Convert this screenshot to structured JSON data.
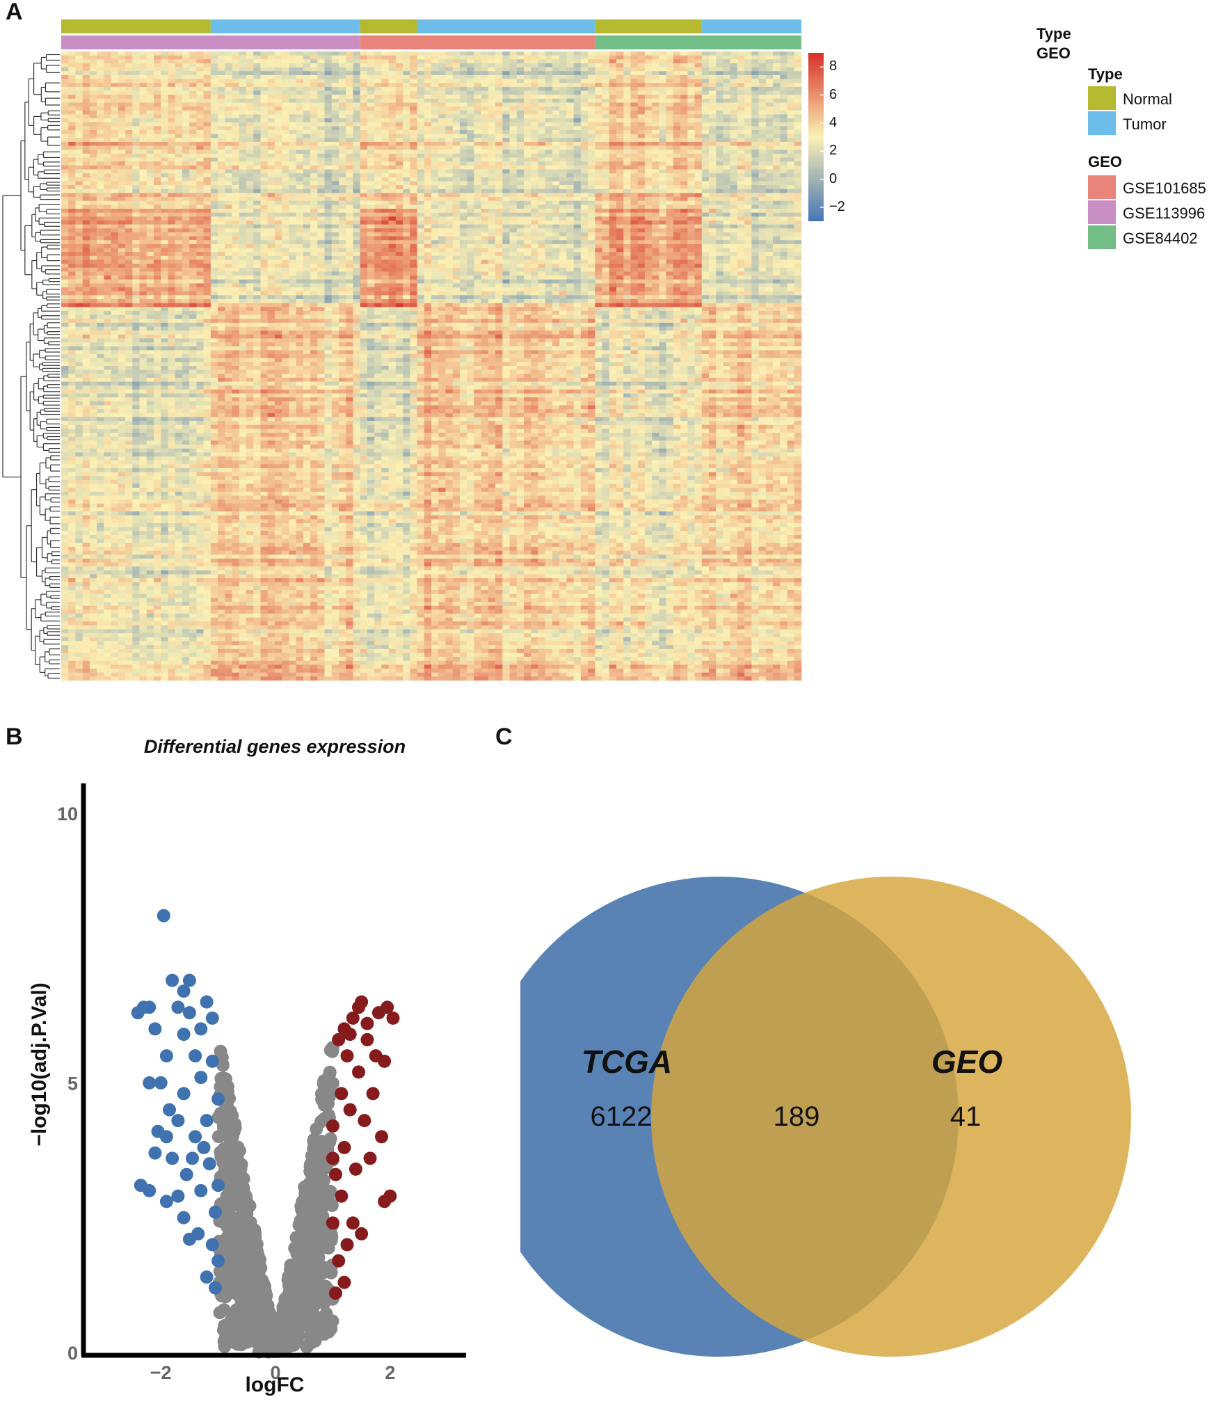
{
  "panels": {
    "a": "A",
    "b": "B",
    "c": "C"
  },
  "heatmap": {
    "annotation_row_labels": [
      "Type",
      "GEO"
    ],
    "type_track": [
      {
        "label": "Normal",
        "n": 21
      },
      {
        "label": "Tumor",
        "n": 21
      },
      {
        "label": "Normal",
        "n": 8
      },
      {
        "label": "Tumor",
        "n": 25
      },
      {
        "label": "Normal",
        "n": 15
      },
      {
        "label": "Tumor",
        "n": 14
      }
    ],
    "geo_track": [
      {
        "label": "GSE113996",
        "n": 42
      },
      {
        "label": "GSE101685",
        "n": 33
      },
      {
        "label": "GSE84402",
        "n": 29
      }
    ],
    "n_rows": 160,
    "color_scale": {
      "ticks": [
        "8",
        "6",
        "4",
        "2",
        "0",
        "−2"
      ],
      "tick_values": [
        8,
        6,
        4,
        2,
        0,
        -2
      ],
      "range": [
        -3,
        9
      ],
      "low": "#4575b4",
      "mid": "#fcf1b5",
      "high": "#d73027"
    },
    "legend": {
      "type_title": "Type",
      "type_items": [
        {
          "label": "Normal",
          "color": "#b4b92f"
        },
        {
          "label": "Tumor",
          "color": "#6cbdea"
        }
      ],
      "geo_title": "GEO",
      "geo_items": [
        {
          "label": "GSE101685",
          "color": "#e8847a"
        },
        {
          "label": "GSE113996",
          "color": "#c98fc5"
        },
        {
          "label": "GSE84402",
          "color": "#73bd86"
        }
      ]
    }
  },
  "chart_data": {
    "type": "scatter",
    "title": "Differential genes expression",
    "xlabel": "logFC",
    "ylabel": "−log10(adj.P.Val)",
    "xlim": [
      -3.3,
      3.3
    ],
    "ylim": [
      0,
      10.5
    ],
    "xticks": [
      -2,
      0,
      2
    ],
    "xtick_labels": [
      "−2",
      "0",
      "2"
    ],
    "yticks": [
      0,
      5,
      10
    ],
    "ytick_labels": [
      "0",
      "5",
      "10"
    ],
    "colors": {
      "down": "#3f72ae",
      "up": "#861b1d",
      "ns": "#888888"
    },
    "series": [
      {
        "name": "down",
        "points": [
          [
            -1.95,
            8.1
          ],
          [
            -2.3,
            6.4
          ],
          [
            -2.4,
            6.3
          ],
          [
            -2.2,
            6.4
          ],
          [
            -2.1,
            6.0
          ],
          [
            -1.7,
            6.4
          ],
          [
            -1.5,
            6.3
          ],
          [
            -1.2,
            6.5
          ],
          [
            -1.1,
            6.2
          ],
          [
            -1.6,
            6.7
          ],
          [
            -1.8,
            6.9
          ],
          [
            -1.5,
            6.9
          ],
          [
            -2.0,
            5.0
          ],
          [
            -2.2,
            5.0
          ],
          [
            -1.9,
            5.5
          ],
          [
            -1.4,
            5.5
          ],
          [
            -1.6,
            4.8
          ],
          [
            -1.3,
            5.1
          ],
          [
            -1.7,
            4.3
          ],
          [
            -1.9,
            4.0
          ],
          [
            -1.4,
            4.0
          ],
          [
            -1.2,
            4.3
          ],
          [
            -1.15,
            3.5
          ],
          [
            -1.3,
            3.0
          ],
          [
            -1.55,
            3.3
          ],
          [
            -1.8,
            3.6
          ],
          [
            -2.1,
            3.7
          ],
          [
            -2.2,
            3.0
          ],
          [
            -2.35,
            3.1
          ],
          [
            -1.9,
            2.8
          ],
          [
            -1.6,
            2.5
          ],
          [
            -1.35,
            2.2
          ],
          [
            -1.1,
            2.0
          ],
          [
            -1.0,
            1.7
          ],
          [
            -1.2,
            1.4
          ],
          [
            -1.05,
            1.2
          ],
          [
            -1.5,
            2.1
          ],
          [
            -1.7,
            2.9
          ],
          [
            -1.1,
            5.4
          ],
          [
            -1.0,
            4.7
          ],
          [
            -1.25,
            3.8
          ],
          [
            -1.45,
            3.6
          ],
          [
            -1.0,
            3.1
          ],
          [
            -1.05,
            2.6
          ],
          [
            -1.6,
            5.9
          ],
          [
            -1.3,
            6.0
          ],
          [
            -1.85,
            4.5
          ],
          [
            -2.05,
            4.1
          ]
        ]
      },
      {
        "name": "up",
        "points": [
          [
            1.5,
            6.5
          ],
          [
            1.8,
            6.3
          ],
          [
            1.95,
            6.4
          ],
          [
            2.05,
            6.2
          ],
          [
            1.35,
            6.2
          ],
          [
            1.2,
            6.0
          ],
          [
            1.6,
            5.8
          ],
          [
            1.75,
            5.5
          ],
          [
            1.9,
            5.4
          ],
          [
            1.45,
            5.2
          ],
          [
            1.25,
            5.5
          ],
          [
            1.15,
            4.8
          ],
          [
            1.3,
            4.5
          ],
          [
            1.55,
            4.3
          ],
          [
            1.85,
            4.0
          ],
          [
            1.65,
            3.6
          ],
          [
            1.2,
            3.8
          ],
          [
            1.05,
            3.3
          ],
          [
            1.15,
            2.9
          ],
          [
            1.35,
            2.4
          ],
          [
            1.5,
            2.2
          ],
          [
            1.9,
            2.8
          ],
          [
            2.0,
            2.9
          ],
          [
            1.25,
            2.0
          ],
          [
            1.1,
            1.7
          ],
          [
            1.2,
            1.3
          ],
          [
            1.05,
            1.1
          ],
          [
            1.0,
            2.4
          ],
          [
            1.4,
            3.4
          ],
          [
            1.7,
            4.8
          ],
          [
            1.1,
            5.8
          ],
          [
            1.3,
            5.9
          ],
          [
            1.0,
            4.2
          ],
          [
            1.0,
            3.6
          ],
          [
            1.6,
            6.1
          ],
          [
            1.45,
            6.4
          ]
        ]
      }
    ],
    "ns_count": 900
  },
  "venn": {
    "sets": [
      {
        "name": "TCGA",
        "only": "6122",
        "color": "#4f7cb0"
      },
      {
        "name": "GEO",
        "only": "41",
        "color": "#d6a53b"
      }
    ],
    "intersection": "189"
  }
}
